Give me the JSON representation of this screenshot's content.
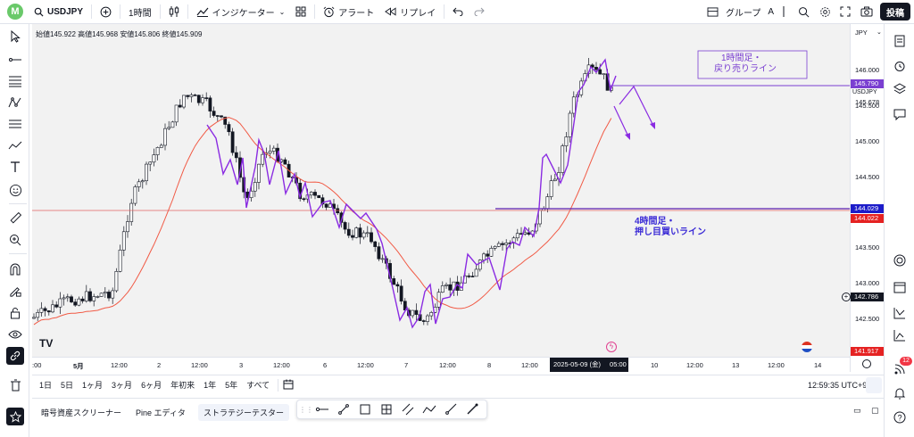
{
  "topbar": {
    "logo_letter": "M",
    "symbol": "USDJPY",
    "interval": "1時間",
    "indicators": "インジケーター",
    "alert": "アラート",
    "replay": "リプレイ",
    "group": "グループ",
    "group_badge": "A",
    "publish": "投稿"
  },
  "legend": {
    "open_label": "始値",
    "open": "145.922",
    "high_label": "高値",
    "high": "145.968",
    "low_label": "安値",
    "low": "145.806",
    "close_label": "終値",
    "close": "145.909"
  },
  "price_axis": {
    "currency": "JPY",
    "labels": [
      "146.000",
      "145.500",
      "145.000",
      "144.500",
      "144.000",
      "143.500",
      "143.000",
      "142.500"
    ],
    "sell_line_badge": "145.790",
    "symbol_label": "USDJPY",
    "current_price": "145.678",
    "buy_line_badge": "144.029",
    "ma_badge": "144.022",
    "crosshair_price": "142.786",
    "low_badge": "141.917"
  },
  "time_axis": {
    "labels": [
      ":00",
      "5月",
      "12:00",
      "2",
      "12:00",
      "3",
      "12:00",
      "6",
      "12:00",
      "7",
      "12:00",
      "8",
      "12:00",
      "10",
      "12:00",
      "13",
      "12:00",
      "14"
    ],
    "highlight": "2025-05-09 (金)",
    "highlight_time": "05:00"
  },
  "annotations": {
    "sell_line_text": [
      "1時間足・",
      "戻り売りライン"
    ],
    "buy_line_text": [
      "4時間足・",
      "押し目買いライン"
    ]
  },
  "range_bar": {
    "ranges": [
      "1日",
      "5日",
      "1ヶ月",
      "3ヶ月",
      "6ヶ月",
      "年初来",
      "1年",
      "5年",
      "すべて"
    ],
    "clock": "12:59:35 UTC+9"
  },
  "bottom_tabs": [
    "暗号資産スクリーナー",
    "Pine エディタ",
    "ストラテジーテスター"
  ],
  "notification_count": "12",
  "colors": {
    "up": "#ffffff",
    "down": "#131722",
    "ma": "#f15a45",
    "annotation": "#8a2be2",
    "sell_badge": "#7a3fd1",
    "buy_badge": "#1c1cc9",
    "ma_badge": "#e52222",
    "accent": "#2962ff"
  }
}
